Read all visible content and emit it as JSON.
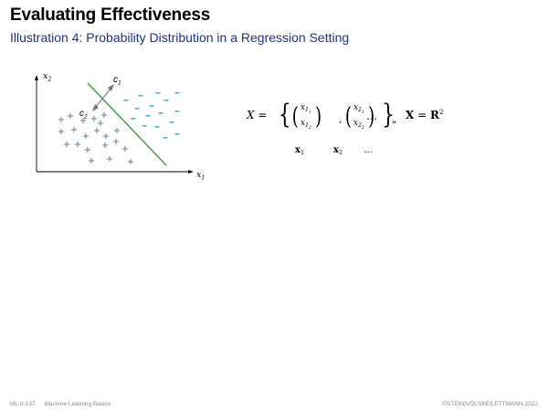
{
  "slide": {
    "title": "Evaluating Effectiveness",
    "subtitle": "Illustration 4:  Probability Distribution in a Regression Setting"
  },
  "figure": {
    "axis_x_label": "x",
    "axis_x_sub": "1",
    "axis_y_label": "x",
    "axis_y_sub": "2",
    "class1_label": "c",
    "class1_sub": "1",
    "class2_label": "c",
    "class2_sub": "2",
    "plus_symbol": "+",
    "minus_symbol": "-",
    "plus_color": "#7a8ea3",
    "minus_color": "#3bb3e6",
    "boundary_color": "#3a9a3a"
  },
  "math": {
    "lhs": "X = ",
    "v1_top": "x",
    "v1_top_sub": "1",
    "v1_top_subsub": "1",
    "v1_bot": "x",
    "v1_bot_sub": "1",
    "v1_bot_subsub": "2",
    "v2_top": "x",
    "v2_top_sub": "2",
    "v2_top_subsub": "1",
    "v2_bot": "x",
    "v2_bot_sub": "2",
    "v2_bot_subsub": "2",
    "ellipsis": "…",
    "rhs_X": "X",
    "rhs_eq": " = ",
    "rhs_R": "R",
    "rhs_exp": "2",
    "under1": "x",
    "under1_sub": "1",
    "under2": "x",
    "under2_sub": "2",
    "under3": "…"
  },
  "footer": {
    "code": "ML:II-137",
    "course": "Machine Learning Basics",
    "copyright": "©STEIN/VÖLSKE/LETTMANN 2022"
  }
}
